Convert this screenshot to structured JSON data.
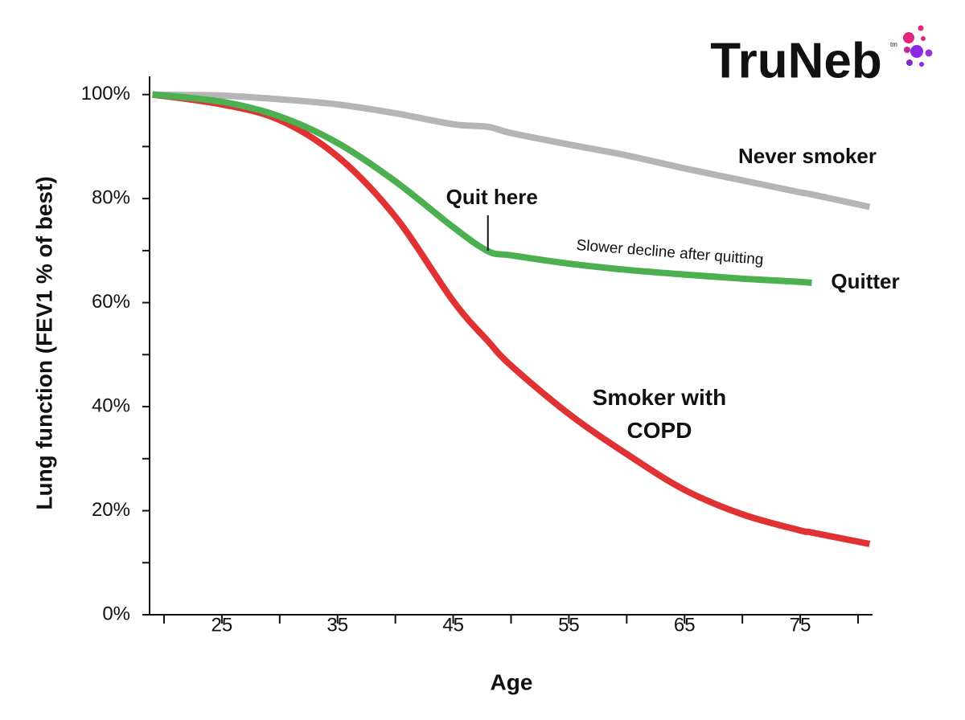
{
  "logo": {
    "text": "TruNeb",
    "mark": "tm"
  },
  "chart_data": {
    "type": "line",
    "x_label": "Age",
    "y_label": "Lung function (FEV1 % of best)",
    "x": [
      19,
      25,
      30,
      35,
      40,
      45,
      48,
      50,
      55,
      60,
      65,
      70,
      75,
      76,
      81
    ],
    "series": [
      {
        "name": "Never smoker",
        "color": "#b5b5b5",
        "values": [
          100,
          99.8,
          99.1,
          98.1,
          96.4,
          94.3,
          93.8,
          92.6,
          90.4,
          88.3,
          85.8,
          83.5,
          81.2,
          80.8,
          78.4
        ]
      },
      {
        "name": "Quitter",
        "color": "#4caf50",
        "values": [
          100,
          98.6,
          95.8,
          90.7,
          83.3,
          74.5,
          69.9,
          69.1,
          67.5,
          66.3,
          65.4,
          64.6,
          64.0,
          63.8,
          null
        ]
      },
      {
        "name": "Smoker with COPD",
        "color": "#e03232",
        "values": [
          100,
          98.1,
          95.1,
          88.1,
          76.5,
          60.3,
          52.6,
          47.9,
          38.6,
          30.9,
          24.0,
          19.3,
          16.2,
          15.8,
          13.6
        ]
      }
    ],
    "annotations": [
      {
        "text": "Quit here",
        "x": 48
      },
      {
        "text": "Slower decline after quitting"
      }
    ],
    "xlim": [
      18.75,
      81.25
    ],
    "xticks": [
      25,
      35,
      45,
      55,
      65,
      75
    ],
    "x_minor_ticks": [
      20,
      30,
      40,
      50,
      60,
      70,
      80
    ],
    "ylim": [
      0,
      103.5
    ],
    "yticks": [
      {
        "value": 0,
        "label": "0%"
      },
      {
        "value": 20,
        "label": "20%"
      },
      {
        "value": 40,
        "label": "40%"
      },
      {
        "value": 60,
        "label": "60%"
      },
      {
        "value": 80,
        "label": "80%"
      },
      {
        "value": 100,
        "label": "100%"
      }
    ],
    "y_minor_ticks": [
      10,
      30,
      50,
      70,
      90
    ],
    "grid": false
  }
}
